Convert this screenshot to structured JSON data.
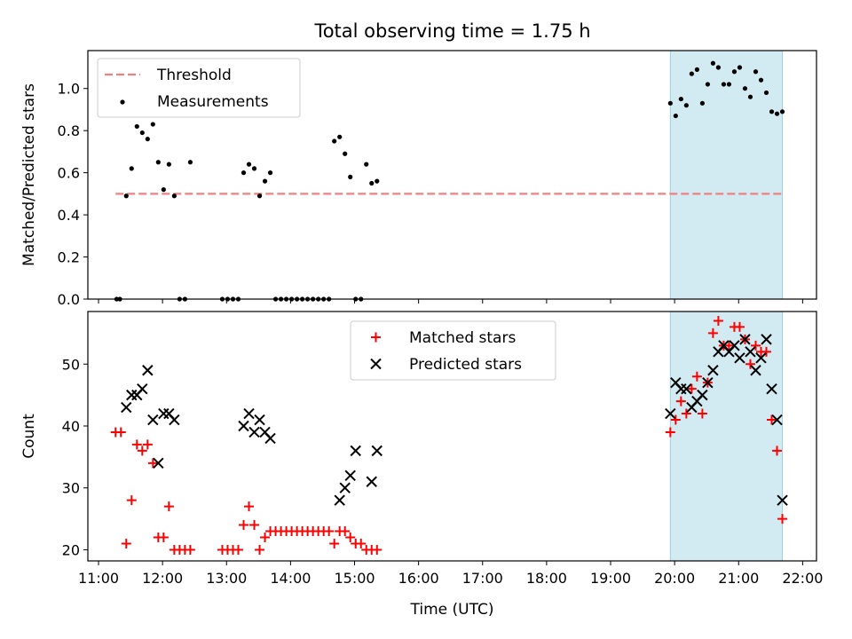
{
  "title": "Total observing time = 1.75 h",
  "colors": {
    "threshold": "#f08080",
    "matched": "#ff0000",
    "predicted": "#000000",
    "measurement": "#000000",
    "highlight": "#add8e6"
  },
  "chart_data": [
    {
      "type": "scatter",
      "ylabel": "Matched/Predicted stars",
      "xlabel": "",
      "xlim": [
        "10:50",
        "22:13"
      ],
      "ylim": [
        0,
        1.18
      ],
      "yticks": [
        "0.0",
        "0.2",
        "0.4",
        "0.6",
        "0.8",
        "1.0"
      ],
      "x_tick_labels_visible": false,
      "legend_position": "upper left",
      "highlight_span": [
        "19:56",
        "21:41"
      ],
      "threshold": {
        "name": "Threshold",
        "style": "dashed",
        "value": 0.5,
        "x_range": [
          "11:16",
          "21:41"
        ]
      },
      "series": [
        {
          "name": "Measurements",
          "marker": "dot",
          "x": [
            "11:17",
            "11:20",
            "11:26",
            "11:31",
            "11:36",
            "11:41",
            "11:46",
            "11:51",
            "11:56",
            "12:01",
            "12:06",
            "12:11",
            "12:16",
            "12:21",
            "12:26",
            "12:56",
            "13:01",
            "13:06",
            "13:11",
            "13:16",
            "13:21",
            "13:26",
            "13:31",
            "13:36",
            "13:41",
            "13:46",
            "13:51",
            "13:56",
            "14:01",
            "14:06",
            "14:11",
            "14:16",
            "14:21",
            "14:26",
            "14:31",
            "14:36",
            "14:41",
            "14:46",
            "14:51",
            "14:56",
            "15:01",
            "15:06",
            "15:11",
            "15:16",
            "15:21",
            "19:56",
            "20:01",
            "20:06",
            "20:11",
            "20:16",
            "20:21",
            "20:26",
            "20:31",
            "20:36",
            "20:41",
            "20:46",
            "20:51",
            "20:56",
            "21:01",
            "21:06",
            "21:11",
            "21:16",
            "21:21",
            "21:26",
            "21:31",
            "21:36",
            "21:41"
          ],
          "y": [
            0,
            0,
            0.49,
            0.62,
            0.82,
            0.79,
            0.76,
            0.83,
            0.65,
            0.52,
            0.64,
            0.49,
            0,
            0,
            0.65,
            0,
            0,
            0,
            0,
            0.6,
            0.64,
            0.62,
            0.49,
            0.56,
            0.6,
            0,
            0,
            0,
            0,
            0,
            0,
            0,
            0,
            0,
            0,
            0,
            0.75,
            0.77,
            0.69,
            0.58,
            0,
            0,
            0.64,
            0.55,
            0.56,
            0.93,
            0.87,
            0.95,
            0.92,
            1.07,
            1.09,
            0.93,
            1.02,
            1.12,
            1.1,
            1.02,
            1.02,
            1.08,
            1.1,
            1.0,
            0.96,
            1.08,
            1.04,
            0.98,
            0.89,
            0.88,
            0.89
          ]
        }
      ]
    },
    {
      "type": "scatter",
      "ylabel": "Count",
      "xlabel": "Time (UTC)",
      "xlim": [
        "10:50",
        "22:13"
      ],
      "ylim": [
        18.2,
        58.5
      ],
      "yticks": [
        "20",
        "30",
        "40",
        "50"
      ],
      "xticks": [
        "11:00",
        "12:00",
        "13:00",
        "14:00",
        "15:00",
        "16:00",
        "17:00",
        "18:00",
        "19:00",
        "20:00",
        "21:00",
        "22:00"
      ],
      "legend_position": "upper center",
      "highlight_span": [
        "19:56",
        "21:41"
      ],
      "series": [
        {
          "name": "Matched stars",
          "marker": "plus",
          "x": [
            "11:16",
            "11:21",
            "11:26",
            "11:31",
            "11:36",
            "11:41",
            "11:46",
            "11:51",
            "11:56",
            "12:01",
            "12:06",
            "12:11",
            "12:16",
            "12:21",
            "12:26",
            "12:56",
            "13:01",
            "13:06",
            "13:11",
            "13:16",
            "13:21",
            "13:26",
            "13:31",
            "13:36",
            "13:41",
            "13:46",
            "13:51",
            "13:56",
            "14:01",
            "14:06",
            "14:11",
            "14:16",
            "14:21",
            "14:26",
            "14:31",
            "14:36",
            "14:41",
            "14:46",
            "14:51",
            "14:56",
            "15:01",
            "15:06",
            "15:11",
            "15:16",
            "15:21",
            "19:56",
            "20:01",
            "20:06",
            "20:11",
            "20:16",
            "20:21",
            "20:26",
            "20:31",
            "20:36",
            "20:41",
            "20:46",
            "20:51",
            "20:56",
            "21:01",
            "21:06",
            "21:11",
            "21:16",
            "21:21",
            "21:26",
            "21:31",
            "21:36",
            "21:41"
          ],
          "y": [
            39,
            39,
            21,
            28,
            37,
            36,
            37,
            34,
            22,
            22,
            27,
            20,
            20,
            20,
            20,
            20,
            20,
            20,
            20,
            24,
            27,
            24,
            20,
            22,
            23,
            23,
            23,
            23,
            23,
            23,
            23,
            23,
            23,
            23,
            23,
            23,
            21,
            23,
            23,
            22,
            21,
            21,
            20,
            20,
            20,
            39,
            41,
            44,
            42,
            46,
            48,
            42,
            47,
            55,
            57,
            53,
            53,
            56,
            56,
            54,
            50,
            53,
            52,
            52,
            41,
            36,
            25
          ]
        },
        {
          "name": "Predicted stars",
          "marker": "x",
          "x": [
            "11:26",
            "11:31",
            "11:36",
            "11:41",
            "11:46",
            "11:51",
            "11:56",
            "12:01",
            "12:06",
            "12:11",
            "13:16",
            "13:21",
            "13:26",
            "13:31",
            "13:36",
            "13:41",
            "14:46",
            "14:51",
            "14:56",
            "15:01",
            "15:16",
            "15:21",
            "19:56",
            "20:01",
            "20:06",
            "20:11",
            "20:16",
            "20:21",
            "20:26",
            "20:31",
            "20:36",
            "20:41",
            "20:46",
            "20:51",
            "20:56",
            "21:01",
            "21:06",
            "21:11",
            "21:16",
            "21:21",
            "21:26",
            "21:31",
            "21:36",
            "21:41"
          ],
          "y": [
            43,
            45,
            45,
            46,
            49,
            41,
            34,
            42,
            42,
            41,
            40,
            42,
            39,
            41,
            39,
            38,
            28,
            30,
            32,
            36,
            31,
            36,
            42,
            47,
            46,
            46,
            43,
            44,
            45,
            47,
            49,
            52,
            53,
            52,
            53,
            51,
            54,
            52,
            49,
            51,
            54,
            46,
            41,
            28
          ]
        }
      ]
    }
  ]
}
